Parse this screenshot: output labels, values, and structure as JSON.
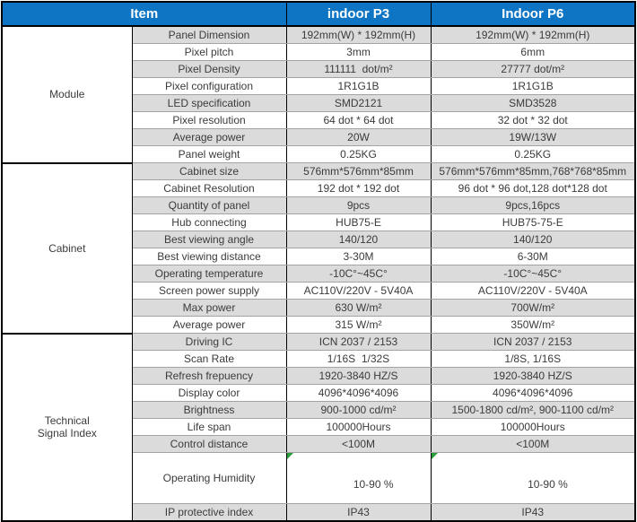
{
  "colors": {
    "header_bg": "#0d75c3",
    "header_text": "#ffffff",
    "row_alt_bg": "#dbdbdb",
    "row_bg": "#ffffff",
    "text": "#3b3b3b",
    "grid_dark": "#000000",
    "grid_light": "#a3a3a3",
    "note_marker_green": "#2c9c3c"
  },
  "header": {
    "item": "Item",
    "p3": "indoor P3",
    "p6": "Indoor P6"
  },
  "groups": [
    {
      "label": "Module"
    },
    {
      "label": "Cabinet"
    },
    {
      "label": "Technical\nSignal Index"
    }
  ],
  "rows": [
    {
      "item": "Panel Dimension",
      "p3": "192mm(W) * 192mm(H)",
      "p6": "192mm(W) * 192mm(H)"
    },
    {
      "item": "Pixel pitch",
      "p3": "3mm",
      "p6": "6mm"
    },
    {
      "item": "Pixel Density",
      "p3": "111111  dot/m²",
      "p6": "27777 dot/m²"
    },
    {
      "item": "Pixel configuration",
      "p3": "1R1G1B",
      "p6": "1R1G1B"
    },
    {
      "item": "LED specification",
      "p3": "SMD2121",
      "p6": "SMD3528"
    },
    {
      "item": "Pixel resolution",
      "p3": "64 dot * 64 dot",
      "p6": "32 dot * 32 dot"
    },
    {
      "item": "Average power",
      "p3": "20W",
      "p6": "19W/13W"
    },
    {
      "item": "Panel weight",
      "p3": "0.25KG",
      "p6": "0.25KG"
    },
    {
      "item": "Cabinet size",
      "p3": "576mm*576mm*85mm",
      "p6": "576mm*576mm*85mm,768*768*85mm"
    },
    {
      "item": "Cabinet Resolution",
      "p3": "192 dot * 192 dot",
      "p6": "96 dot * 96 dot,128 dot*128 dot"
    },
    {
      "item": "Quantity of panel",
      "p3": "9pcs",
      "p6": "9pcs,16pcs"
    },
    {
      "item": "Hub connecting",
      "p3": "HUB75-E",
      "p6": "HUB75-75-E"
    },
    {
      "item": "Best viewing angle",
      "p3": "140/120",
      "p6": "140/120"
    },
    {
      "item": "Best viewing distance",
      "p3": "3-30M",
      "p6": "6-30M"
    },
    {
      "item": "Operating temperature",
      "p3": "-10C°~45C°",
      "p6": "-10C°~45C°"
    },
    {
      "item": "Screen power supply",
      "p3": "AC110V/220V - 5V40A",
      "p6": "AC110V/220V - 5V40A"
    },
    {
      "item": "Max power",
      "p3": "630 W/m²",
      "p6": "700W/m²"
    },
    {
      "item": "Average power",
      "p3": "315 W/m²",
      "p6": "350W/m²"
    },
    {
      "item": "Driving IC",
      "p3": "ICN 2037 / 2153",
      "p6": "ICN 2037 / 2153"
    },
    {
      "item": "Scan Rate",
      "p3": "1/16S  1/32S",
      "p6": "1/8S, 1/16S"
    },
    {
      "item": "Refresh frepuency",
      "p3": "1920-3840 HZ/S",
      "p6": "1920-3840 HZ/S"
    },
    {
      "item": "Display color",
      "p3": "4096*4096*4096",
      "p6": "4096*4096*4096"
    },
    {
      "item": "Brightness",
      "p3": "900-1000 cd/m²",
      "p6": "1500-1800 cd/m², 900-1100 cd/m²"
    },
    {
      "item": "Life span",
      "p3": "100000Hours",
      "p6": "100000Hours"
    },
    {
      "item": "Control distance",
      "p3": "<100M",
      "p6": "<100M"
    },
    {
      "item": "Operating Humidity",
      "p3": "10-90 %",
      "p6": "10-90 %"
    },
    {
      "item": "IP protective index",
      "p3": "IP43",
      "p6": "IP43"
    }
  ]
}
